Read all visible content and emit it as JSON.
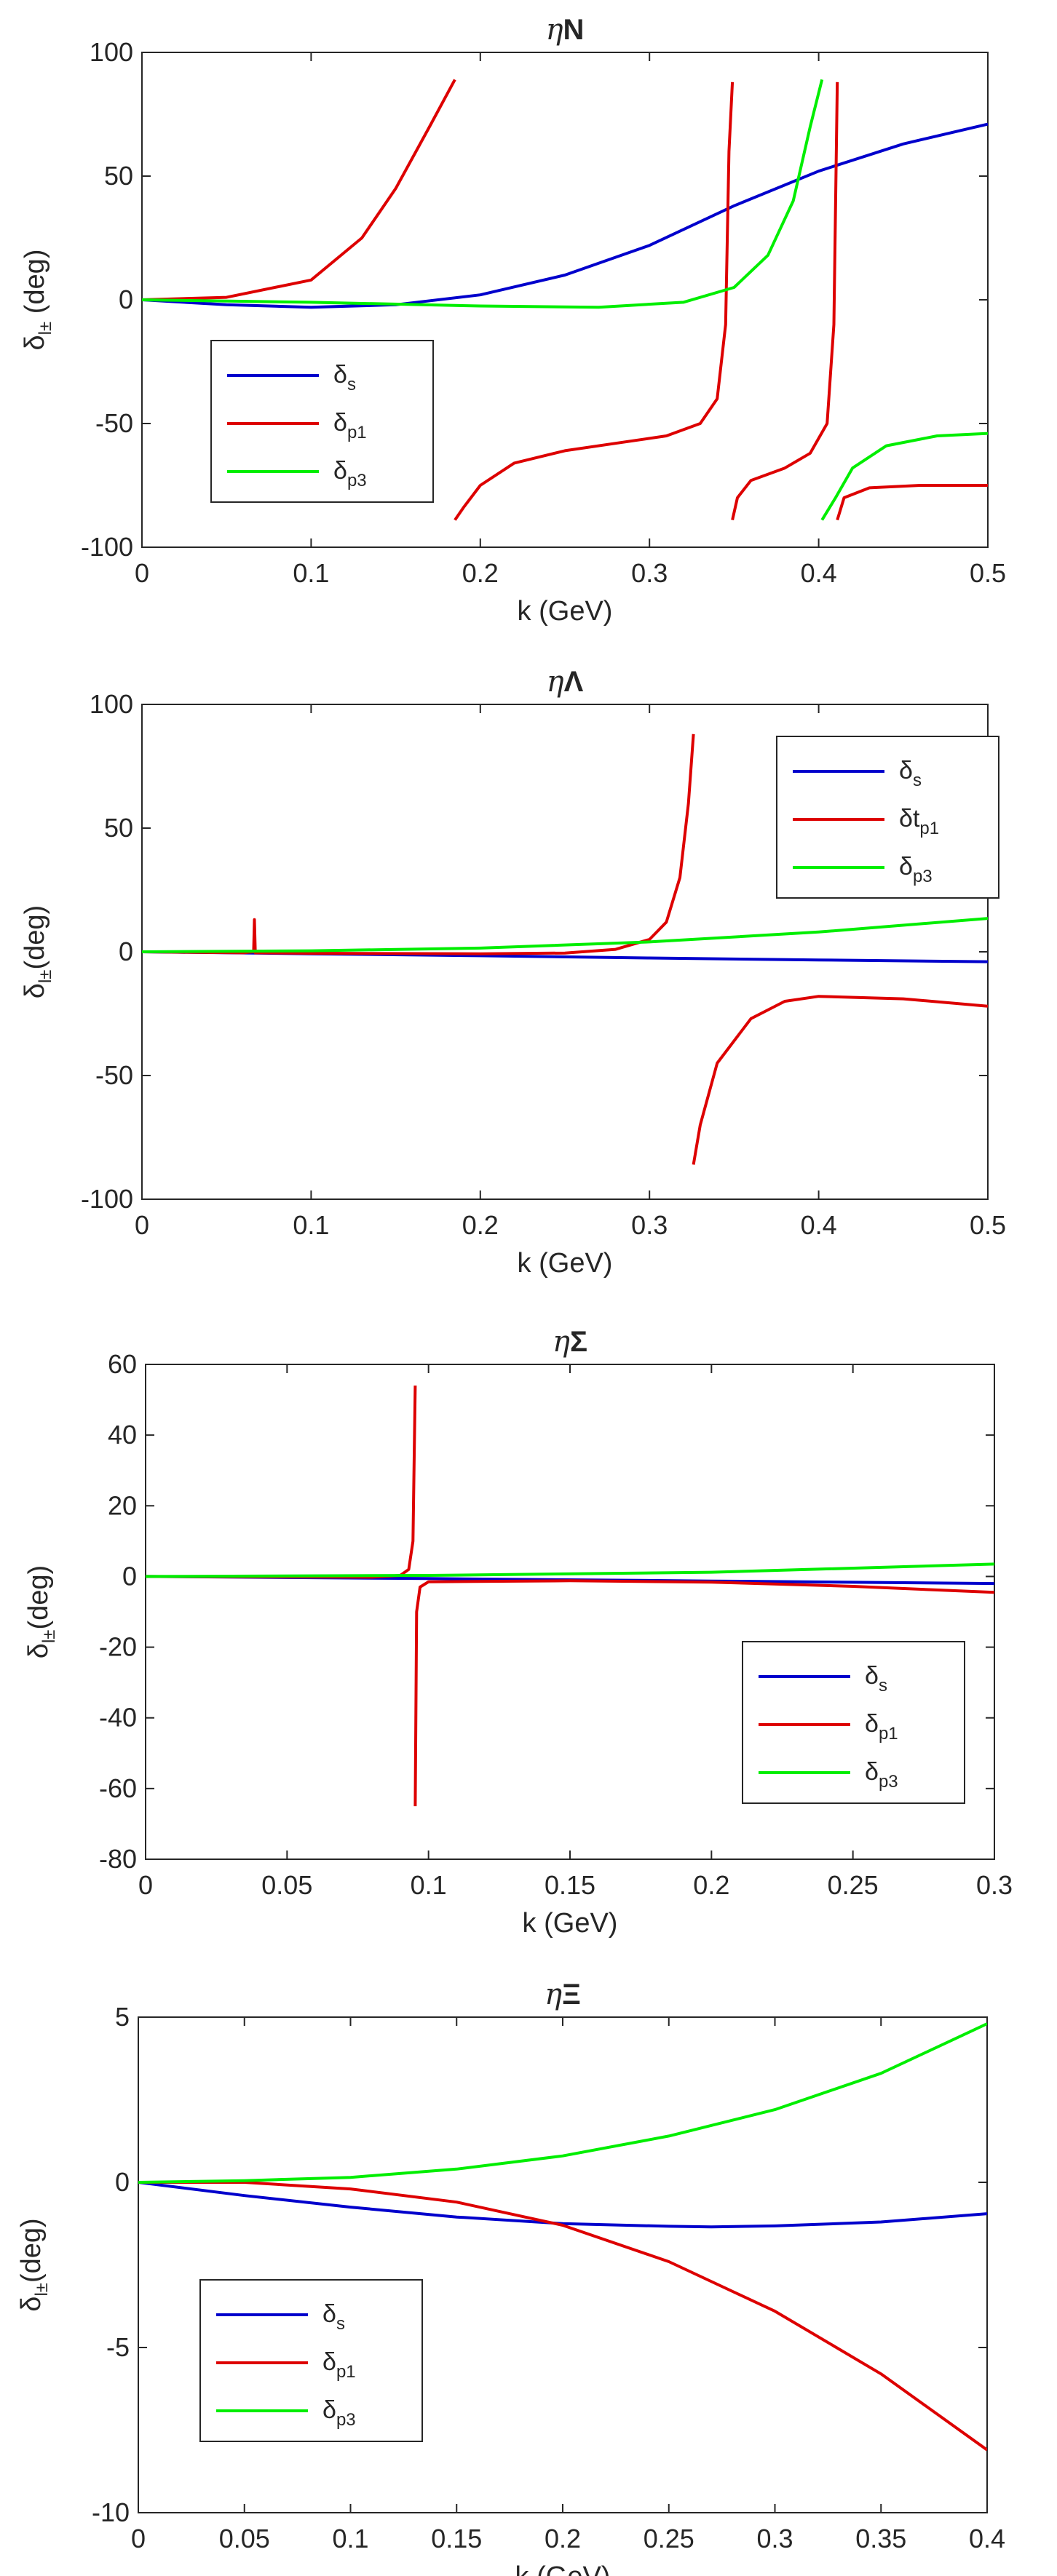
{
  "chart_data": [
    {
      "type": "line",
      "title": "ηN",
      "title_parts": {
        "greek": "η",
        "rest": "N"
      },
      "xlabel": "k (GeV)",
      "ylabel": {
        "main": "δ",
        "sub": "l±",
        "rest": " (deg)"
      },
      "xlim": [
        0,
        0.5
      ],
      "ylim": [
        -100,
        100
      ],
      "xticks": [
        0,
        0.1,
        0.2,
        0.3,
        0.4,
        0.5
      ],
      "xtick_labels": [
        "0",
        "0.1",
        "0.2",
        "0.3",
        "0.4",
        "0.5"
      ],
      "yticks": [
        -100,
        -50,
        0,
        50,
        100
      ],
      "ytick_labels": [
        "-100",
        "-50",
        "0",
        "50",
        "100"
      ],
      "legend_position": "lower-left",
      "series": [
        {
          "name": "δs",
          "label_main": "δ",
          "label_sub": "s",
          "label_extra": "",
          "color": "#0000cc",
          "points": [
            [
              0,
              0
            ],
            [
              0.05,
              -2
            ],
            [
              0.1,
              -3
            ],
            [
              0.15,
              -2
            ],
            [
              0.2,
              2
            ],
            [
              0.25,
              10
            ],
            [
              0.3,
              22
            ],
            [
              0.35,
              38
            ],
            [
              0.4,
              52
            ],
            [
              0.45,
              63
            ],
            [
              0.5,
              71
            ]
          ]
        },
        {
          "name": "δp1",
          "label_main": "δ",
          "label_sub": "p1",
          "label_extra": "",
          "color": "#dd0000",
          "points": [
            [
              0,
              0
            ],
            [
              0.05,
              1
            ],
            [
              0.1,
              8
            ],
            [
              0.13,
              25
            ],
            [
              0.15,
              45
            ],
            [
              0.17,
              70
            ],
            [
              0.185,
              89
            ],
            null,
            [
              0.185,
              -89
            ],
            [
              0.19,
              -84
            ],
            [
              0.2,
              -75
            ],
            [
              0.22,
              -66
            ],
            [
              0.25,
              -61
            ],
            [
              0.28,
              -58
            ],
            [
              0.31,
              -55
            ],
            [
              0.33,
              -50
            ],
            [
              0.34,
              -40
            ],
            [
              0.345,
              -10
            ],
            [
              0.347,
              60
            ],
            [
              0.349,
              88
            ],
            null,
            [
              0.349,
              -89
            ],
            [
              0.352,
              -80
            ],
            [
              0.36,
              -73
            ],
            [
              0.38,
              -68
            ],
            [
              0.395,
              -62
            ],
            [
              0.405,
              -50
            ],
            [
              0.409,
              -10
            ],
            [
              0.411,
              88
            ],
            null,
            [
              0.411,
              -89
            ],
            [
              0.415,
              -80
            ],
            [
              0.43,
              -76
            ],
            [
              0.46,
              -75
            ],
            [
              0.5,
              -75
            ]
          ]
        },
        {
          "name": "δp3",
          "label_main": "δ",
          "label_sub": "p3",
          "label_extra": "",
          "color": "#00ee00",
          "points": [
            [
              0,
              0
            ],
            [
              0.1,
              -1
            ],
            [
              0.2,
              -2.5
            ],
            [
              0.27,
              -3
            ],
            [
              0.32,
              -1
            ],
            [
              0.35,
              5
            ],
            [
              0.37,
              18
            ],
            [
              0.385,
              40
            ],
            [
              0.395,
              70
            ],
            [
              0.402,
              89
            ],
            null,
            [
              0.402,
              -89
            ],
            [
              0.41,
              -80
            ],
            [
              0.42,
              -68
            ],
            [
              0.44,
              -59
            ],
            [
              0.47,
              -55
            ],
            [
              0.5,
              -54
            ]
          ]
        }
      ]
    },
    {
      "type": "line",
      "title": "ηΛ",
      "title_parts": {
        "greek": "η",
        "rest": "Λ"
      },
      "xlabel": "k (GeV)",
      "ylabel": {
        "main": "δ",
        "sub": "l±",
        "rest": "(deg)"
      },
      "xlim": [
        0,
        0.5
      ],
      "ylim": [
        -100,
        100
      ],
      "xticks": [
        0,
        0.1,
        0.2,
        0.3,
        0.4,
        0.5
      ],
      "xtick_labels": [
        "0",
        "0.1",
        "0.2",
        "0.3",
        "0.4",
        "0.5"
      ],
      "yticks": [
        -100,
        -50,
        0,
        50,
        100
      ],
      "ytick_labels": [
        "-100",
        "-50",
        "0",
        "50",
        "100"
      ],
      "legend_position": "top-right",
      "series": [
        {
          "name": "δs",
          "label_main": "δ",
          "label_sub": "s",
          "label_extra": "",
          "color": "#0000cc",
          "points": [
            [
              0,
              0
            ],
            [
              0.1,
              -0.8
            ],
            [
              0.2,
              -1.6
            ],
            [
              0.3,
              -2.5
            ],
            [
              0.4,
              -3.3
            ],
            [
              0.5,
              -4
            ]
          ]
        },
        {
          "name": "δt p1",
          "label_main": "δ",
          "label_sub": "p1",
          "label_extra": "t",
          "color": "#dd0000",
          "points": [
            [
              0,
              0
            ],
            [
              0.06,
              -0.4
            ],
            [
              0.066,
              0
            ],
            [
              0.0665,
              13
            ],
            [
              0.067,
              -0.4
            ],
            [
              0.1,
              -0.6
            ],
            [
              0.2,
              -0.8
            ],
            [
              0.25,
              -0.5
            ],
            [
              0.28,
              1
            ],
            [
              0.3,
              5
            ],
            [
              0.31,
              12
            ],
            [
              0.318,
              30
            ],
            [
              0.323,
              60
            ],
            [
              0.326,
              88
            ],
            null,
            [
              0.326,
              -86
            ],
            [
              0.33,
              -70
            ],
            [
              0.34,
              -45
            ],
            [
              0.36,
              -27
            ],
            [
              0.38,
              -20
            ],
            [
              0.4,
              -18
            ],
            [
              0.45,
              -19
            ],
            [
              0.5,
              -22
            ]
          ]
        },
        {
          "name": "δp3",
          "label_main": "δ",
          "label_sub": "p3",
          "label_extra": "",
          "color": "#00ee00",
          "points": [
            [
              0,
              0
            ],
            [
              0.1,
              0.4
            ],
            [
              0.2,
              1.5
            ],
            [
              0.3,
              4
            ],
            [
              0.4,
              8
            ],
            [
              0.5,
              13.5
            ]
          ]
        }
      ]
    },
    {
      "type": "line",
      "title": "ηΣ",
      "title_parts": {
        "greek": "η",
        "rest": "Σ"
      },
      "xlabel": "k (GeV)",
      "ylabel": {
        "main": "δ",
        "sub": "l±",
        "rest": "(deg)"
      },
      "xlim": [
        0,
        0.3
      ],
      "ylim": [
        -80,
        60
      ],
      "xticks": [
        0,
        0.05,
        0.1,
        0.15,
        0.2,
        0.25,
        0.3
      ],
      "xtick_labels": [
        "0",
        "0.05",
        "0.1",
        "0.15",
        "0.2",
        "0.25",
        "0.3"
      ],
      "yticks": [
        -80,
        -60,
        -40,
        -20,
        0,
        20,
        40,
        60
      ],
      "ytick_labels": [
        "-80",
        "-60",
        "-40",
        "-20",
        "0",
        "20",
        "40",
        "60"
      ],
      "legend_position": "lower-right",
      "series": [
        {
          "name": "δs",
          "label_main": "δ",
          "label_sub": "s",
          "label_extra": "",
          "color": "#0000cc",
          "points": [
            [
              0,
              0
            ],
            [
              0.1,
              -0.6
            ],
            [
              0.2,
              -1.3
            ],
            [
              0.3,
              -2
            ]
          ]
        },
        {
          "name": "δp1",
          "label_main": "δ",
          "label_sub": "p1",
          "label_extra": "",
          "color": "#dd0000",
          "points": [
            [
              0,
              0
            ],
            [
              0.08,
              -0.2
            ],
            [
              0.09,
              0.3
            ],
            [
              0.093,
              2
            ],
            [
              0.0945,
              10
            ],
            [
              0.0953,
              54
            ],
            null,
            [
              0.0953,
              -65
            ],
            [
              0.0958,
              -10
            ],
            [
              0.097,
              -3
            ],
            [
              0.1,
              -1.5
            ],
            [
              0.15,
              -1.2
            ],
            [
              0.2,
              -1.6
            ],
            [
              0.25,
              -2.8
            ],
            [
              0.3,
              -4.5
            ]
          ]
        },
        {
          "name": "δp3",
          "label_main": "δ",
          "label_sub": "p3",
          "label_extra": "",
          "color": "#00ee00",
          "points": [
            [
              0,
              0
            ],
            [
              0.1,
              0.3
            ],
            [
              0.2,
              1.2
            ],
            [
              0.3,
              3.5
            ]
          ]
        }
      ]
    },
    {
      "type": "line",
      "title": "ηΞ",
      "title_parts": {
        "greek": "η",
        "rest": "Ξ"
      },
      "xlabel": "k (GeV)",
      "ylabel": {
        "main": "δ",
        "sub": "l±",
        "rest": "(deg)"
      },
      "xlim": [
        0,
        0.4
      ],
      "ylim": [
        -10,
        5
      ],
      "xticks": [
        0,
        0.05,
        0.1,
        0.15,
        0.2,
        0.25,
        0.3,
        0.35,
        0.4
      ],
      "xtick_labels": [
        "0",
        "0.05",
        "0.1",
        "0.15",
        "0.2",
        "0.25",
        "0.3",
        "0.35",
        "0.4"
      ],
      "yticks": [
        -10,
        -5,
        0,
        5
      ],
      "ytick_labels": [
        "-10",
        "-5",
        "0",
        "5"
      ],
      "legend_position": "lower-left",
      "series": [
        {
          "name": "δs",
          "label_main": "δ",
          "label_sub": "s",
          "label_extra": "",
          "color": "#0000cc",
          "points": [
            [
              0,
              0
            ],
            [
              0.05,
              -0.4
            ],
            [
              0.1,
              -0.75
            ],
            [
              0.15,
              -1.05
            ],
            [
              0.2,
              -1.25
            ],
            [
              0.25,
              -1.33
            ],
            [
              0.27,
              -1.35
            ],
            [
              0.3,
              -1.32
            ],
            [
              0.35,
              -1.2
            ],
            [
              0.4,
              -0.95
            ]
          ]
        },
        {
          "name": "δp1",
          "label_main": "δ",
          "label_sub": "p1",
          "label_extra": "",
          "color": "#dd0000",
          "points": [
            [
              0,
              0
            ],
            [
              0.05,
              0
            ],
            [
              0.1,
              -0.2
            ],
            [
              0.15,
              -0.6
            ],
            [
              0.2,
              -1.3
            ],
            [
              0.25,
              -2.4
            ],
            [
              0.3,
              -3.9
            ],
            [
              0.35,
              -5.8
            ],
            [
              0.4,
              -8.1
            ]
          ]
        },
        {
          "name": "δp3",
          "label_main": "δ",
          "label_sub": "p3",
          "label_extra": "",
          "color": "#00ee00",
          "points": [
            [
              0,
              0
            ],
            [
              0.05,
              0.05
            ],
            [
              0.1,
              0.15
            ],
            [
              0.15,
              0.4
            ],
            [
              0.2,
              0.8
            ],
            [
              0.25,
              1.4
            ],
            [
              0.3,
              2.2
            ],
            [
              0.35,
              3.3
            ],
            [
              0.4,
              4.8
            ]
          ]
        }
      ]
    }
  ]
}
